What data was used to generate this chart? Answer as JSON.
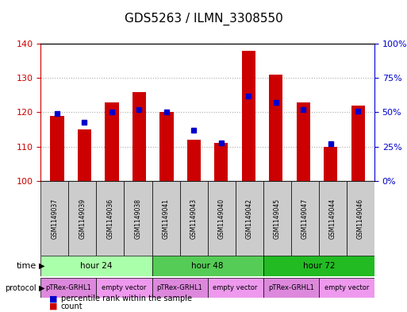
{
  "title": "GDS5263 / ILMN_3308550",
  "samples": [
    "GSM1149037",
    "GSM1149039",
    "GSM1149036",
    "GSM1149038",
    "GSM1149041",
    "GSM1149043",
    "GSM1149040",
    "GSM1149042",
    "GSM1149045",
    "GSM1149047",
    "GSM1149044",
    "GSM1149046"
  ],
  "counts": [
    119,
    115,
    123,
    126,
    120,
    112,
    111,
    138,
    131,
    123,
    110,
    122
  ],
  "percentile_ranks": [
    49,
    43,
    50,
    52,
    50,
    37,
    28,
    62,
    57,
    52,
    27,
    51
  ],
  "ylim_left": [
    100,
    140
  ],
  "ylim_right": [
    0,
    100
  ],
  "yticks_left": [
    100,
    110,
    120,
    130,
    140
  ],
  "yticks_right": [
    0,
    25,
    50,
    75,
    100
  ],
  "ytick_labels_right": [
    "0%",
    "25%",
    "50%",
    "75%",
    "100%"
  ],
  "bar_color": "#cc0000",
  "dot_color": "#0000cc",
  "bar_width": 0.5,
  "time_groups": [
    {
      "label": "hour 24",
      "start": 0,
      "end": 3,
      "color": "#aaffaa"
    },
    {
      "label": "hour 48",
      "start": 4,
      "end": 7,
      "color": "#55cc55"
    },
    {
      "label": "hour 72",
      "start": 8,
      "end": 11,
      "color": "#22bb22"
    }
  ],
  "protocol_groups": [
    {
      "label": "pTRex-GRHL1",
      "start": 0,
      "end": 1,
      "color": "#dd88dd"
    },
    {
      "label": "empty vector",
      "start": 2,
      "end": 3,
      "color": "#ee99ee"
    },
    {
      "label": "pTRex-GRHL1",
      "start": 4,
      "end": 5,
      "color": "#dd88dd"
    },
    {
      "label": "empty vector",
      "start": 6,
      "end": 7,
      "color": "#ee99ee"
    },
    {
      "label": "pTRex-GRHL1",
      "start": 8,
      "end": 9,
      "color": "#dd88dd"
    },
    {
      "label": "empty vector",
      "start": 10,
      "end": 11,
      "color": "#ee99ee"
    }
  ],
  "legend_count_color": "#cc0000",
  "legend_dot_color": "#0000cc",
  "grid_color": "#aaaaaa",
  "bg_color": "#ffffff",
  "sample_box_color": "#cccccc",
  "title_fontsize": 11,
  "axis_label_color_left": "#cc0000",
  "axis_label_color_right": "#0000cc"
}
